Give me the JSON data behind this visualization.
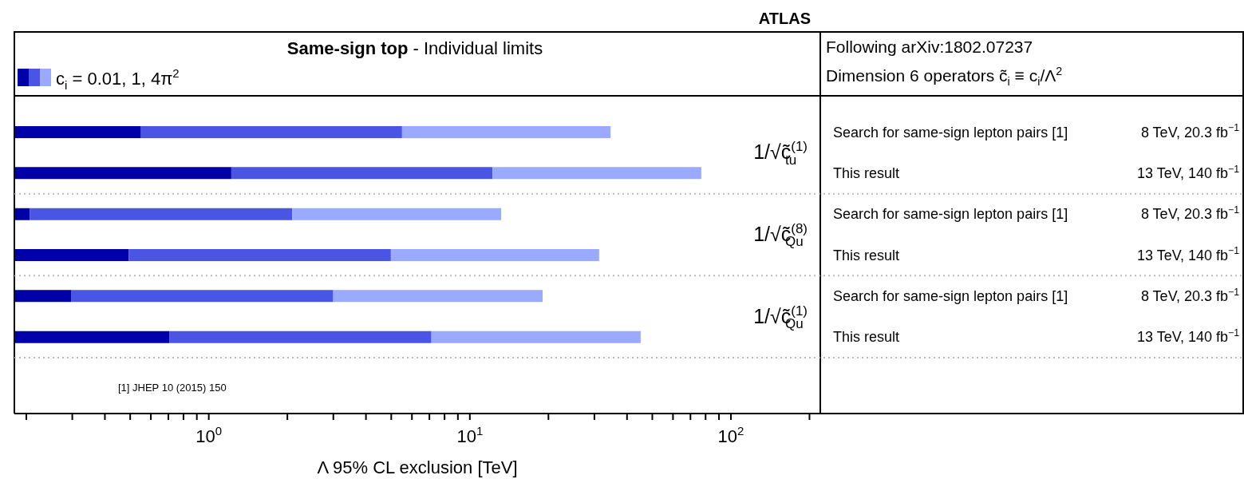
{
  "chart_data": {
    "type": "bar",
    "orientation": "horizontal",
    "stacked": true,
    "log": "x",
    "title": "Same-sign top",
    "subtitle": "- Individual limits",
    "xlabel": "Λ 95% CL exclusion [TeV]",
    "legend_title": "c$_{i}$ = 0.01, 1, 4π$^{2}$",
    "grid": "y",
    "categories": [
      "Search for same-sign lepton pairs [1]",
      "This result",
      "Search for same-sign lepton pairs [1]",
      "This result",
      "Search for same-sign lepton pairs [1]",
      "This result"
    ],
    "series": [
      {
        "color": "#0000a8",
        "values": [
          0.55,
          1.22,
          0.206,
          0.494,
          0.298,
          0.708
        ]
      },
      {
        "color": "#4a55e6",
        "values": [
          4.95,
          11.0,
          1.88,
          4.49,
          2.7,
          6.42
        ]
      },
      {
        "color": "#99aaff",
        "values": [
          29.1,
          64.8,
          11.1,
          26.3,
          16.0,
          38.0
        ]
      }
    ],
    "xlim": [
      0.18,
      220
    ],
    "xticks": [
      {
        "value": 0.2,
        "label": null
      },
      {
        "value": 0.3,
        "label": null
      },
      {
        "value": 0.4,
        "label": null
      },
      {
        "value": 0.5,
        "label": null
      },
      {
        "value": 0.6,
        "label": null
      },
      {
        "value": 0.7,
        "label": null
      },
      {
        "value": 0.8,
        "label": null
      },
      {
        "value": 0.9,
        "label": null
      },
      {
        "value": 1,
        "label": "10$^{0}$"
      },
      {
        "value": 2,
        "label": null
      },
      {
        "value": 3,
        "label": null
      },
      {
        "value": 4,
        "label": null
      },
      {
        "value": 5,
        "label": null
      },
      {
        "value": 6,
        "label": null
      },
      {
        "value": 7,
        "label": null
      },
      {
        "value": 8,
        "label": null
      },
      {
        "value": 9,
        "label": null
      },
      {
        "value": 10,
        "label": "10$^{1}$"
      },
      {
        "value": 20,
        "label": null
      },
      {
        "value": 30,
        "label": null
      },
      {
        "value": 40,
        "label": null
      },
      {
        "value": 50,
        "label": null
      },
      {
        "value": 60,
        "label": null
      },
      {
        "value": 70,
        "label": null
      },
      {
        "value": 80,
        "label": null
      },
      {
        "value": 90,
        "label": null
      },
      {
        "value": 100,
        "label": "10$^{2}$"
      },
      {
        "value": 200,
        "label": null
      }
    ],
    "annotations": [
      "ATLAS",
      "Following arXiv:1802.07237",
      "Dimension 6 operators c̃$_{i}$ ≡ c$_{i}$/Λ$^{2}$",
      "[1] JHEP 10 (2015) 150",
      "8 TeV, 20.3 fb$^{−1}$",
      "13 TeV, 140 fb$^{−1}$",
      "8 TeV, 20.3 fb$^{−1}$",
      "13 TeV, 140 fb$^{−1}$",
      "8 TeV, 20.3 fb$^{−1}$",
      "13 TeV, 140 fb$^{−1}$",
      "1/√c̃$^{(1)}$$_{tu}$",
      "1/√c̃$^{(8)}$$_{Qu}$",
      "1/√c̃$^{(1)}$$_{Qu}$"
    ]
  }
}
